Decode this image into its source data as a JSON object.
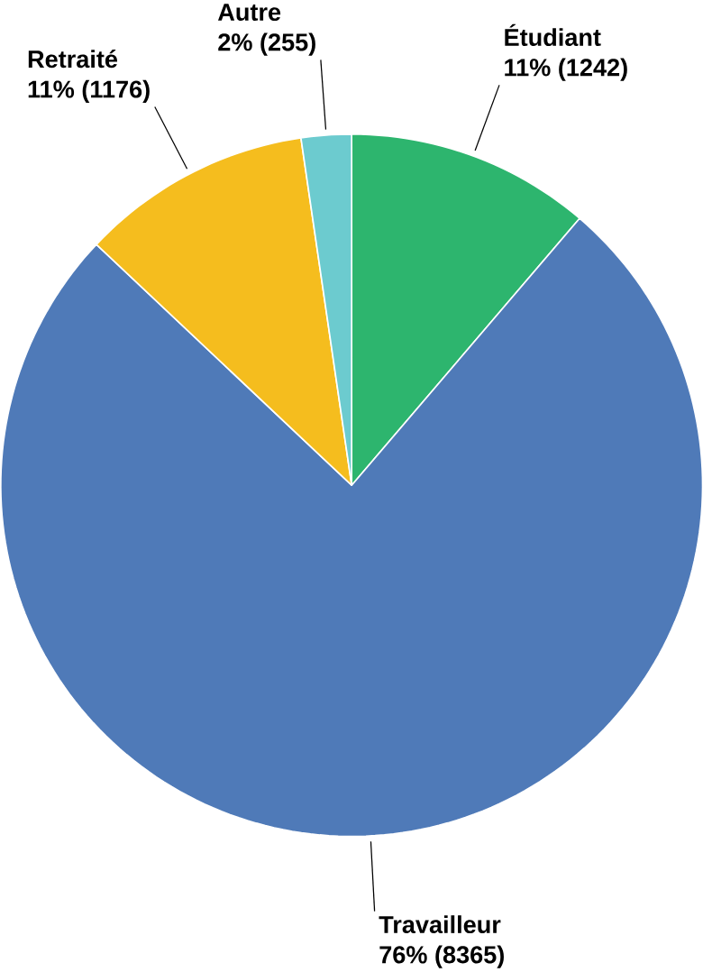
{
  "chart_data": {
    "type": "pie",
    "categories": [
      "Étudiant",
      "Travailleur",
      "Retraité",
      "Autre"
    ],
    "values": [
      1242,
      8365,
      1176,
      255
    ],
    "value_labels": [
      "11% (1242)",
      "76% (8365)",
      "11% (1176)",
      "2% (255)"
    ],
    "colors": [
      "#2db56e",
      "#4f7ab8",
      "#f5bd1e",
      "#6ccbcf"
    ]
  }
}
